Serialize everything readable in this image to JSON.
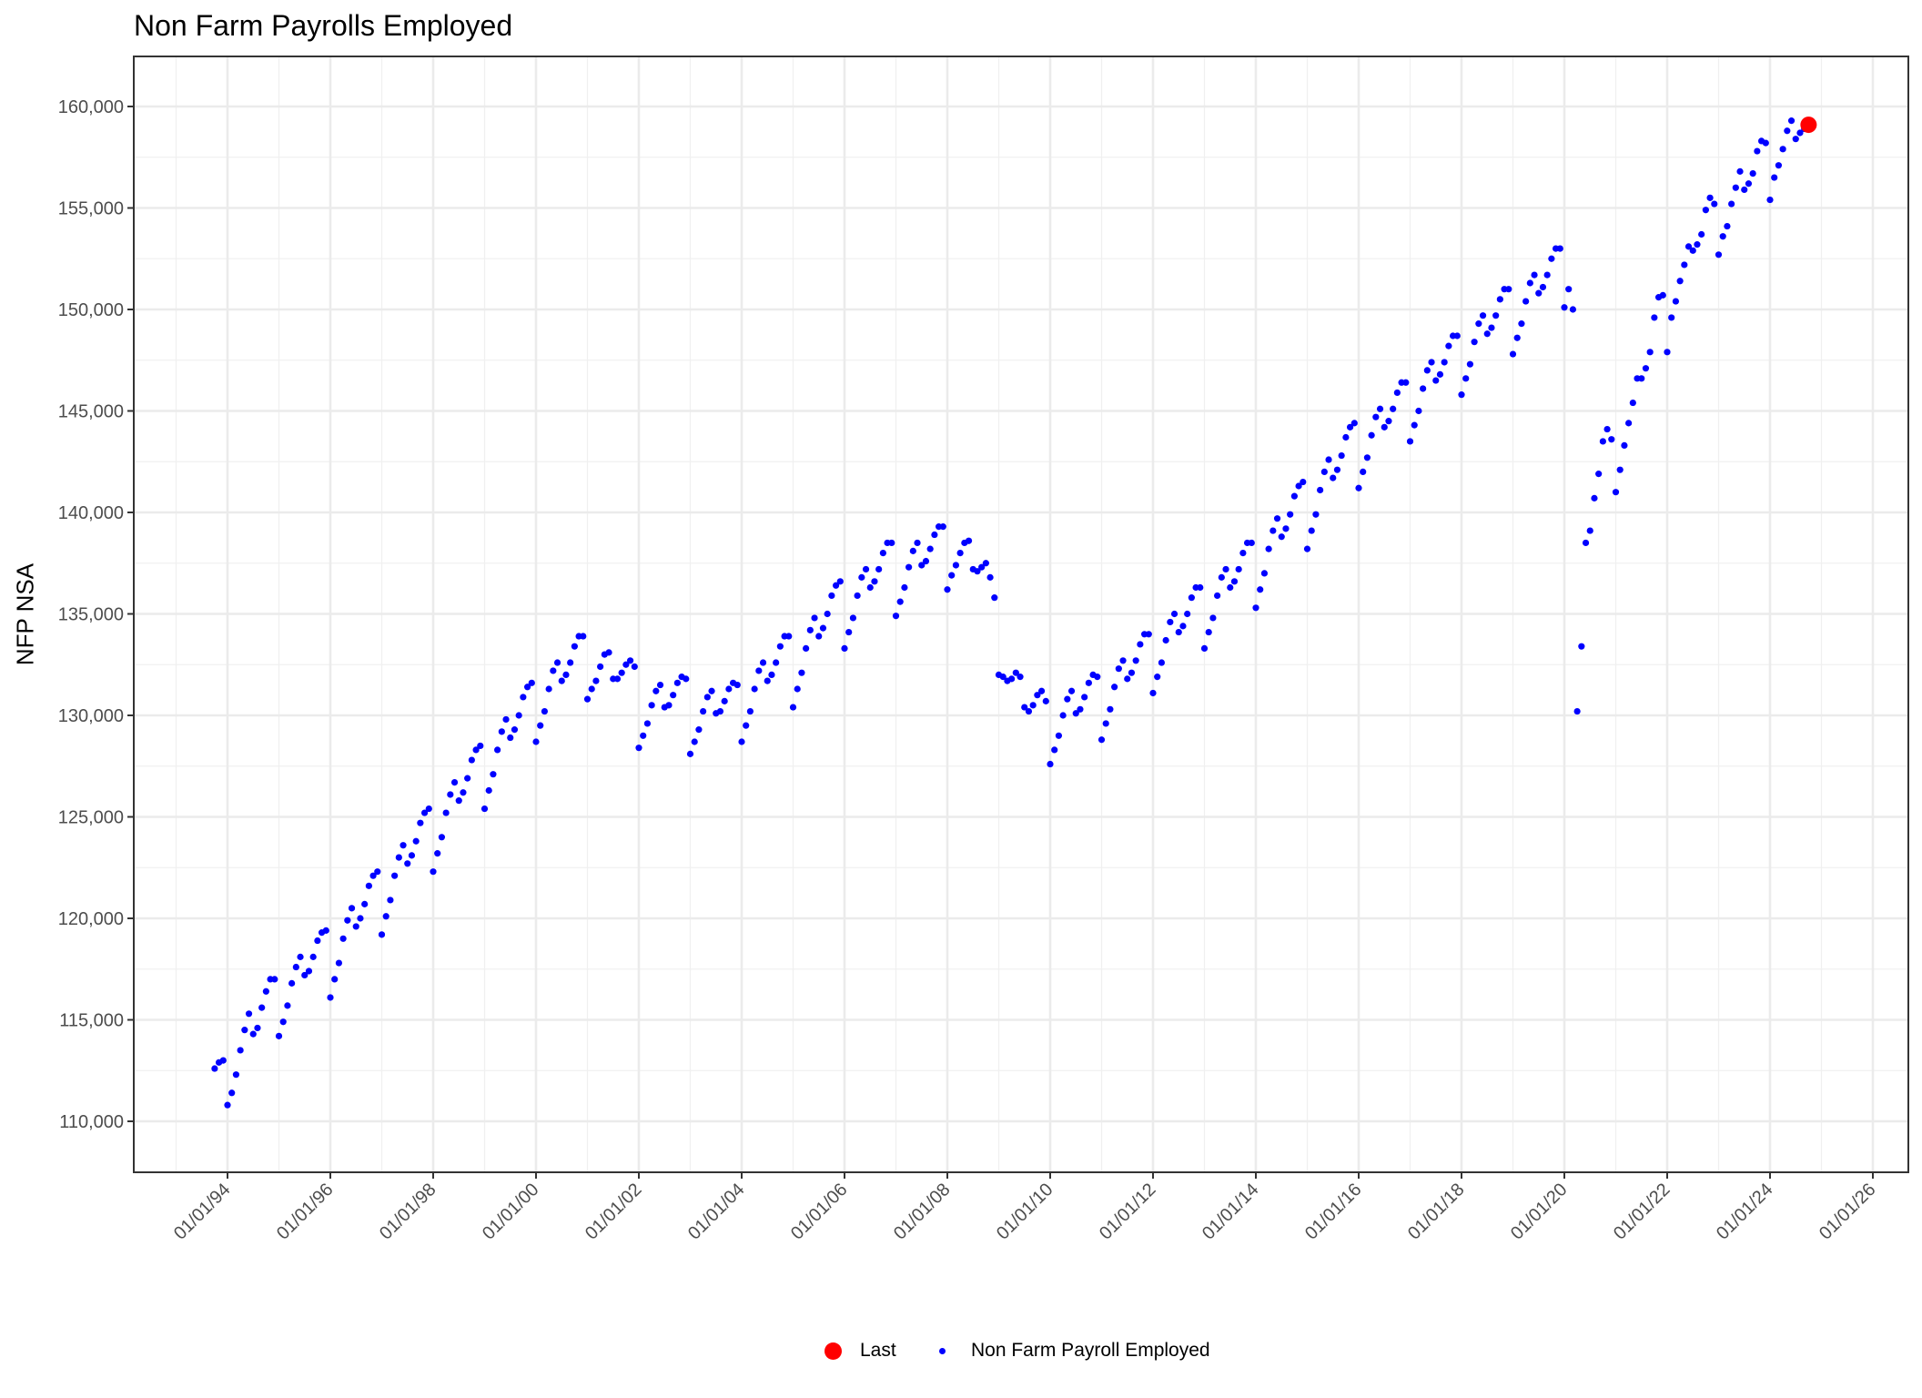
{
  "chart_data": {
    "type": "scatter",
    "title": "Non Farm Payrolls Employed",
    "xlabel": "",
    "ylabel": "NFP NSA",
    "xlim": [
      "1992-03",
      "2026-09"
    ],
    "ylim": [
      107500,
      162450
    ],
    "grid": true,
    "legend_position": "bottom",
    "y_ticks": [
      110000,
      115000,
      120000,
      125000,
      130000,
      135000,
      140000,
      145000,
      150000,
      155000,
      160000
    ],
    "y_tick_labels": [
      "110,000",
      "115,000",
      "120,000",
      "125,000",
      "130,000",
      "135,000",
      "140,000",
      "145,000",
      "150,000",
      "155,000",
      "160,000"
    ],
    "x_ticks": [
      1994,
      1996,
      1998,
      2000,
      2002,
      2004,
      2006,
      2008,
      2010,
      2012,
      2014,
      2016,
      2018,
      2020,
      2022,
      2024,
      2026
    ],
    "x_tick_labels": [
      "01/01/94",
      "01/01/96",
      "01/01/98",
      "01/01/00",
      "01/01/02",
      "01/01/04",
      "01/01/06",
      "01/01/08",
      "01/01/10",
      "01/01/12",
      "01/01/14",
      "01/01/16",
      "01/01/18",
      "01/01/20",
      "01/01/22",
      "01/01/24",
      "01/01/26"
    ],
    "series": [
      {
        "name": "Non Farm Payroll Employed",
        "color": "#0000ff",
        "start": "1993-10",
        "frequency": "monthly",
        "values": [
          112600,
          112900,
          113000,
          110800,
          111400,
          112300,
          113500,
          114500,
          115300,
          114300,
          114600,
          115600,
          116400,
          117000,
          117000,
          114200,
          114900,
          115700,
          116800,
          117600,
          118100,
          117200,
          117400,
          118100,
          118900,
          119300,
          119400,
          116100,
          117000,
          117800,
          119000,
          119900,
          120500,
          119600,
          120000,
          120700,
          121600,
          122100,
          122300,
          119200,
          120100,
          120900,
          122100,
          123000,
          123600,
          122700,
          123100,
          123800,
          124700,
          125200,
          125400,
          122300,
          123200,
          124000,
          125200,
          126100,
          126700,
          125800,
          126200,
          126900,
          127800,
          128300,
          128500,
          125400,
          126300,
          127100,
          128300,
          129200,
          129800,
          128900,
          129300,
          130000,
          130900,
          131400,
          131600,
          128700,
          129500,
          130200,
          131300,
          132200,
          132600,
          131700,
          132000,
          132600,
          133400,
          133900,
          133900,
          130800,
          131300,
          131700,
          132400,
          133000,
          133100,
          131800,
          131800,
          132100,
          132500,
          132700,
          132400,
          128400,
          129000,
          129600,
          130500,
          131200,
          131500,
          130400,
          130500,
          131000,
          131600,
          131900,
          131800,
          128100,
          128700,
          129300,
          130200,
          130900,
          131200,
          130100,
          130200,
          130700,
          131300,
          131600,
          131500,
          128700,
          129500,
          130200,
          131300,
          132200,
          132600,
          131700,
          132000,
          132600,
          133400,
          133900,
          133900,
          130400,
          131300,
          132100,
          133300,
          134200,
          134800,
          133900,
          134300,
          135000,
          135900,
          136400,
          136600,
          133300,
          134100,
          134800,
          135900,
          136800,
          137200,
          136300,
          136600,
          137200,
          138000,
          138500,
          138500,
          134900,
          135600,
          136300,
          137300,
          138100,
          138500,
          137400,
          137600,
          138200,
          138900,
          139300,
          139300,
          136200,
          136900,
          137400,
          138000,
          138500,
          138600,
          137200,
          137100,
          137300,
          137500,
          136800,
          135800,
          132000,
          131900,
          131700,
          131800,
          132100,
          131900,
          130400,
          130200,
          130500,
          131000,
          131200,
          130700,
          127600,
          128300,
          129000,
          130000,
          130800,
          131200,
          130100,
          130300,
          130900,
          131600,
          132000,
          131900,
          128800,
          129600,
          130300,
          131400,
          132300,
          132700,
          131800,
          132100,
          132700,
          133500,
          134000,
          134000,
          131100,
          131900,
          132600,
          133700,
          134600,
          135000,
          134100,
          134400,
          135000,
          135800,
          136300,
          136300,
          133300,
          134100,
          134800,
          135900,
          136800,
          137200,
          136300,
          136600,
          137200,
          138000,
          138500,
          138500,
          135300,
          136200,
          137000,
          138200,
          139100,
          139700,
          138800,
          139200,
          139900,
          140800,
          141300,
          141500,
          138200,
          139100,
          139900,
          141100,
          142000,
          142600,
          141700,
          142100,
          142800,
          143700,
          144200,
          144400,
          141200,
          142000,
          142700,
          143800,
          144700,
          145100,
          144200,
          144500,
          145100,
          145900,
          146400,
          146400,
          143500,
          144300,
          145000,
          146100,
          147000,
          147400,
          146500,
          146800,
          147400,
          148200,
          148700,
          148700,
          145800,
          146600,
          147300,
          148400,
          149300,
          149700,
          148800,
          149100,
          149700,
          150500,
          151000,
          151000,
          147800,
          148600,
          149300,
          150400,
          151300,
          151700,
          150800,
          151100,
          151700,
          152500,
          153000,
          153000,
          150100,
          151000,
          150000,
          130200,
          133400,
          138500,
          139100,
          140700,
          141900,
          143500,
          144100,
          143600,
          141000,
          142100,
          143300,
          144400,
          145400,
          146600,
          146600,
          147100,
          147900,
          149600,
          150600,
          150700,
          147900,
          149600,
          150400,
          151400,
          152200,
          153100,
          152900,
          153200,
          153700,
          154900,
          155500,
          155200,
          152700,
          153600,
          154100,
          155200,
          156000,
          156800,
          155900,
          156200,
          156700,
          157800,
          158300,
          158200,
          155400,
          156500,
          157100,
          157900,
          158800,
          159300,
          158400,
          158700,
          158900,
          159100
        ]
      }
    ],
    "last_point": {
      "name": "Last",
      "color": "#ff0000",
      "date": "2024-10",
      "value": 159100
    },
    "legend": [
      {
        "label": "Last",
        "color": "#ff0000"
      },
      {
        "label": "Non Farm Payroll Employed",
        "color": "#0000ff"
      }
    ]
  }
}
